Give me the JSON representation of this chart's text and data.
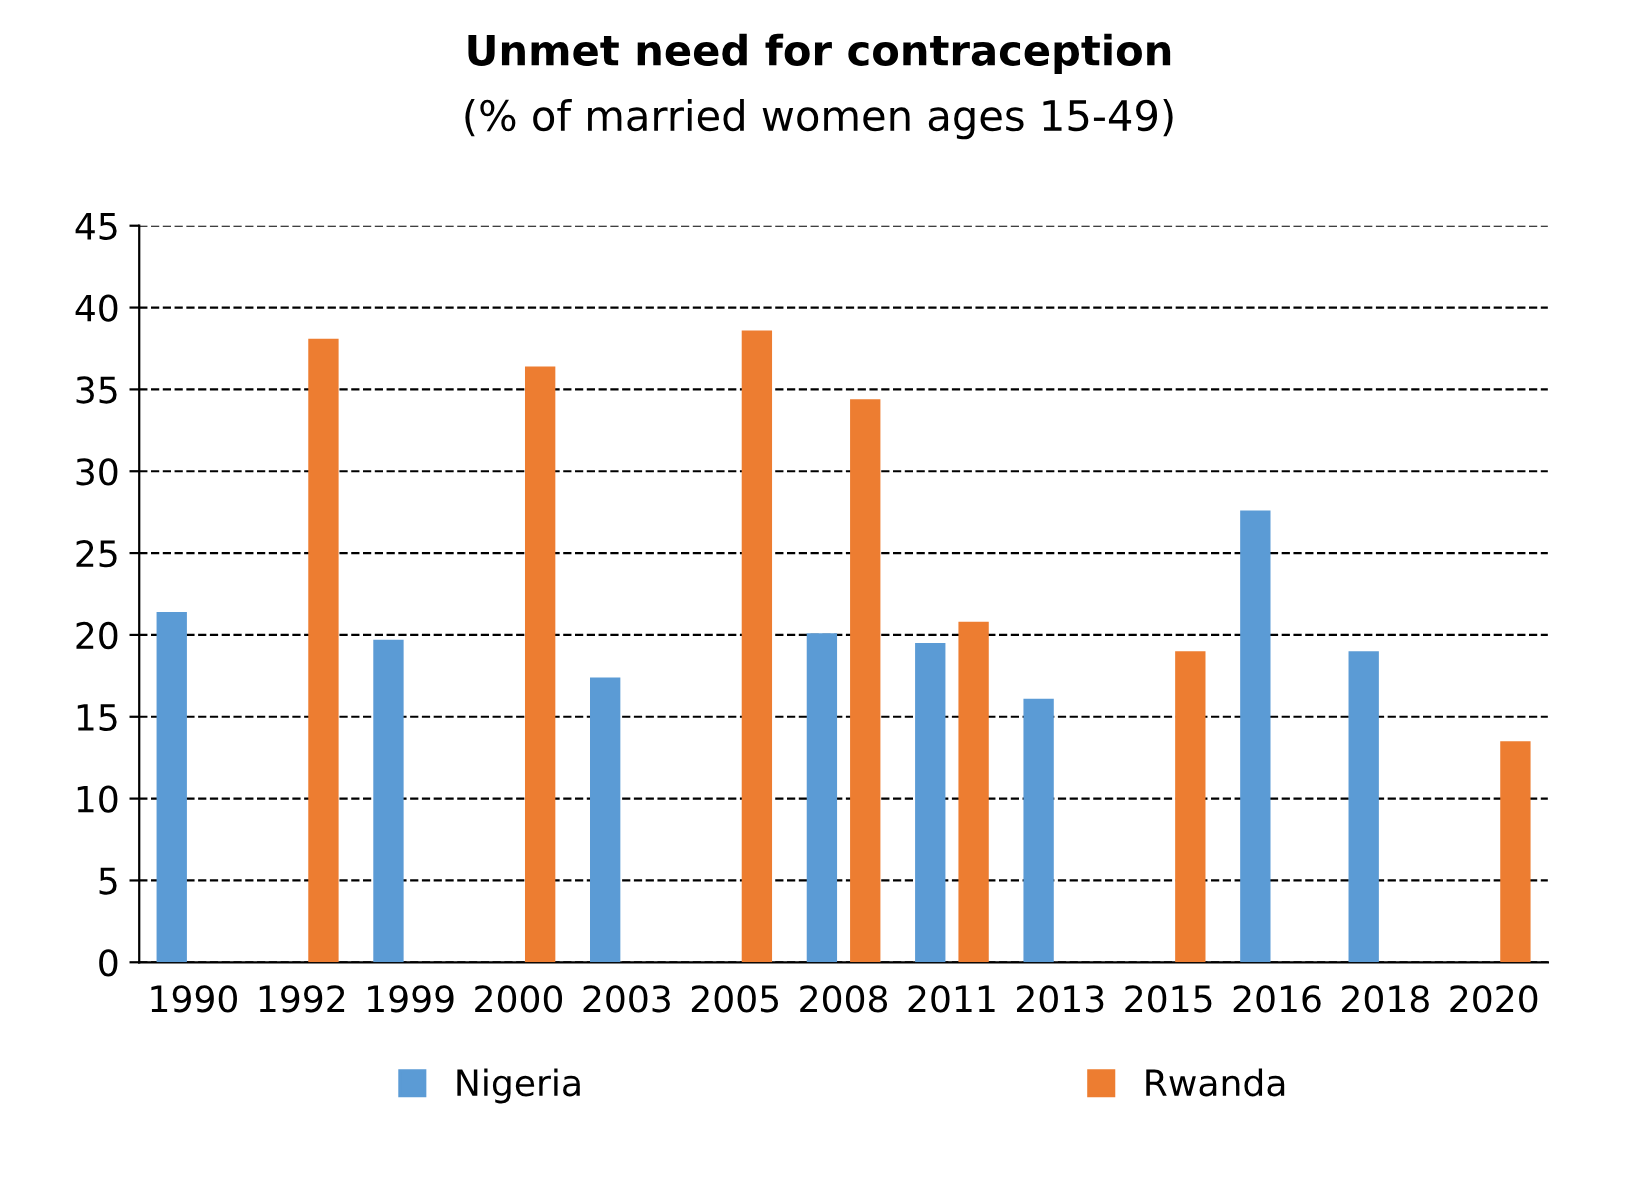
{
  "chart_data": {
    "type": "bar",
    "title": "Unmet need for contraception",
    "subtitle": "(% of married women ages 15-49)",
    "categories": [
      "1990",
      "1992",
      "1999",
      "2000",
      "2003",
      "2005",
      "2008",
      "2011",
      "2013",
      "2015",
      "2016",
      "2018",
      "2020"
    ],
    "series": [
      {
        "name": "Nigeria",
        "color": "#5b9bd5",
        "values": [
          21.4,
          null,
          19.7,
          null,
          17.4,
          null,
          20.1,
          19.5,
          16.1,
          null,
          27.6,
          19.0,
          null
        ]
      },
      {
        "name": "Rwanda",
        "color": "#ed7d31",
        "values": [
          null,
          38.1,
          null,
          36.4,
          null,
          38.6,
          34.4,
          20.8,
          null,
          19.0,
          null,
          null,
          13.5
        ]
      }
    ],
    "ylim": [
      0,
      45
    ],
    "yticks": [
      0,
      5,
      10,
      15,
      20,
      25,
      30,
      35,
      40,
      45
    ],
    "grid": "y",
    "line_style": "dashed",
    "legend": "bottom"
  }
}
